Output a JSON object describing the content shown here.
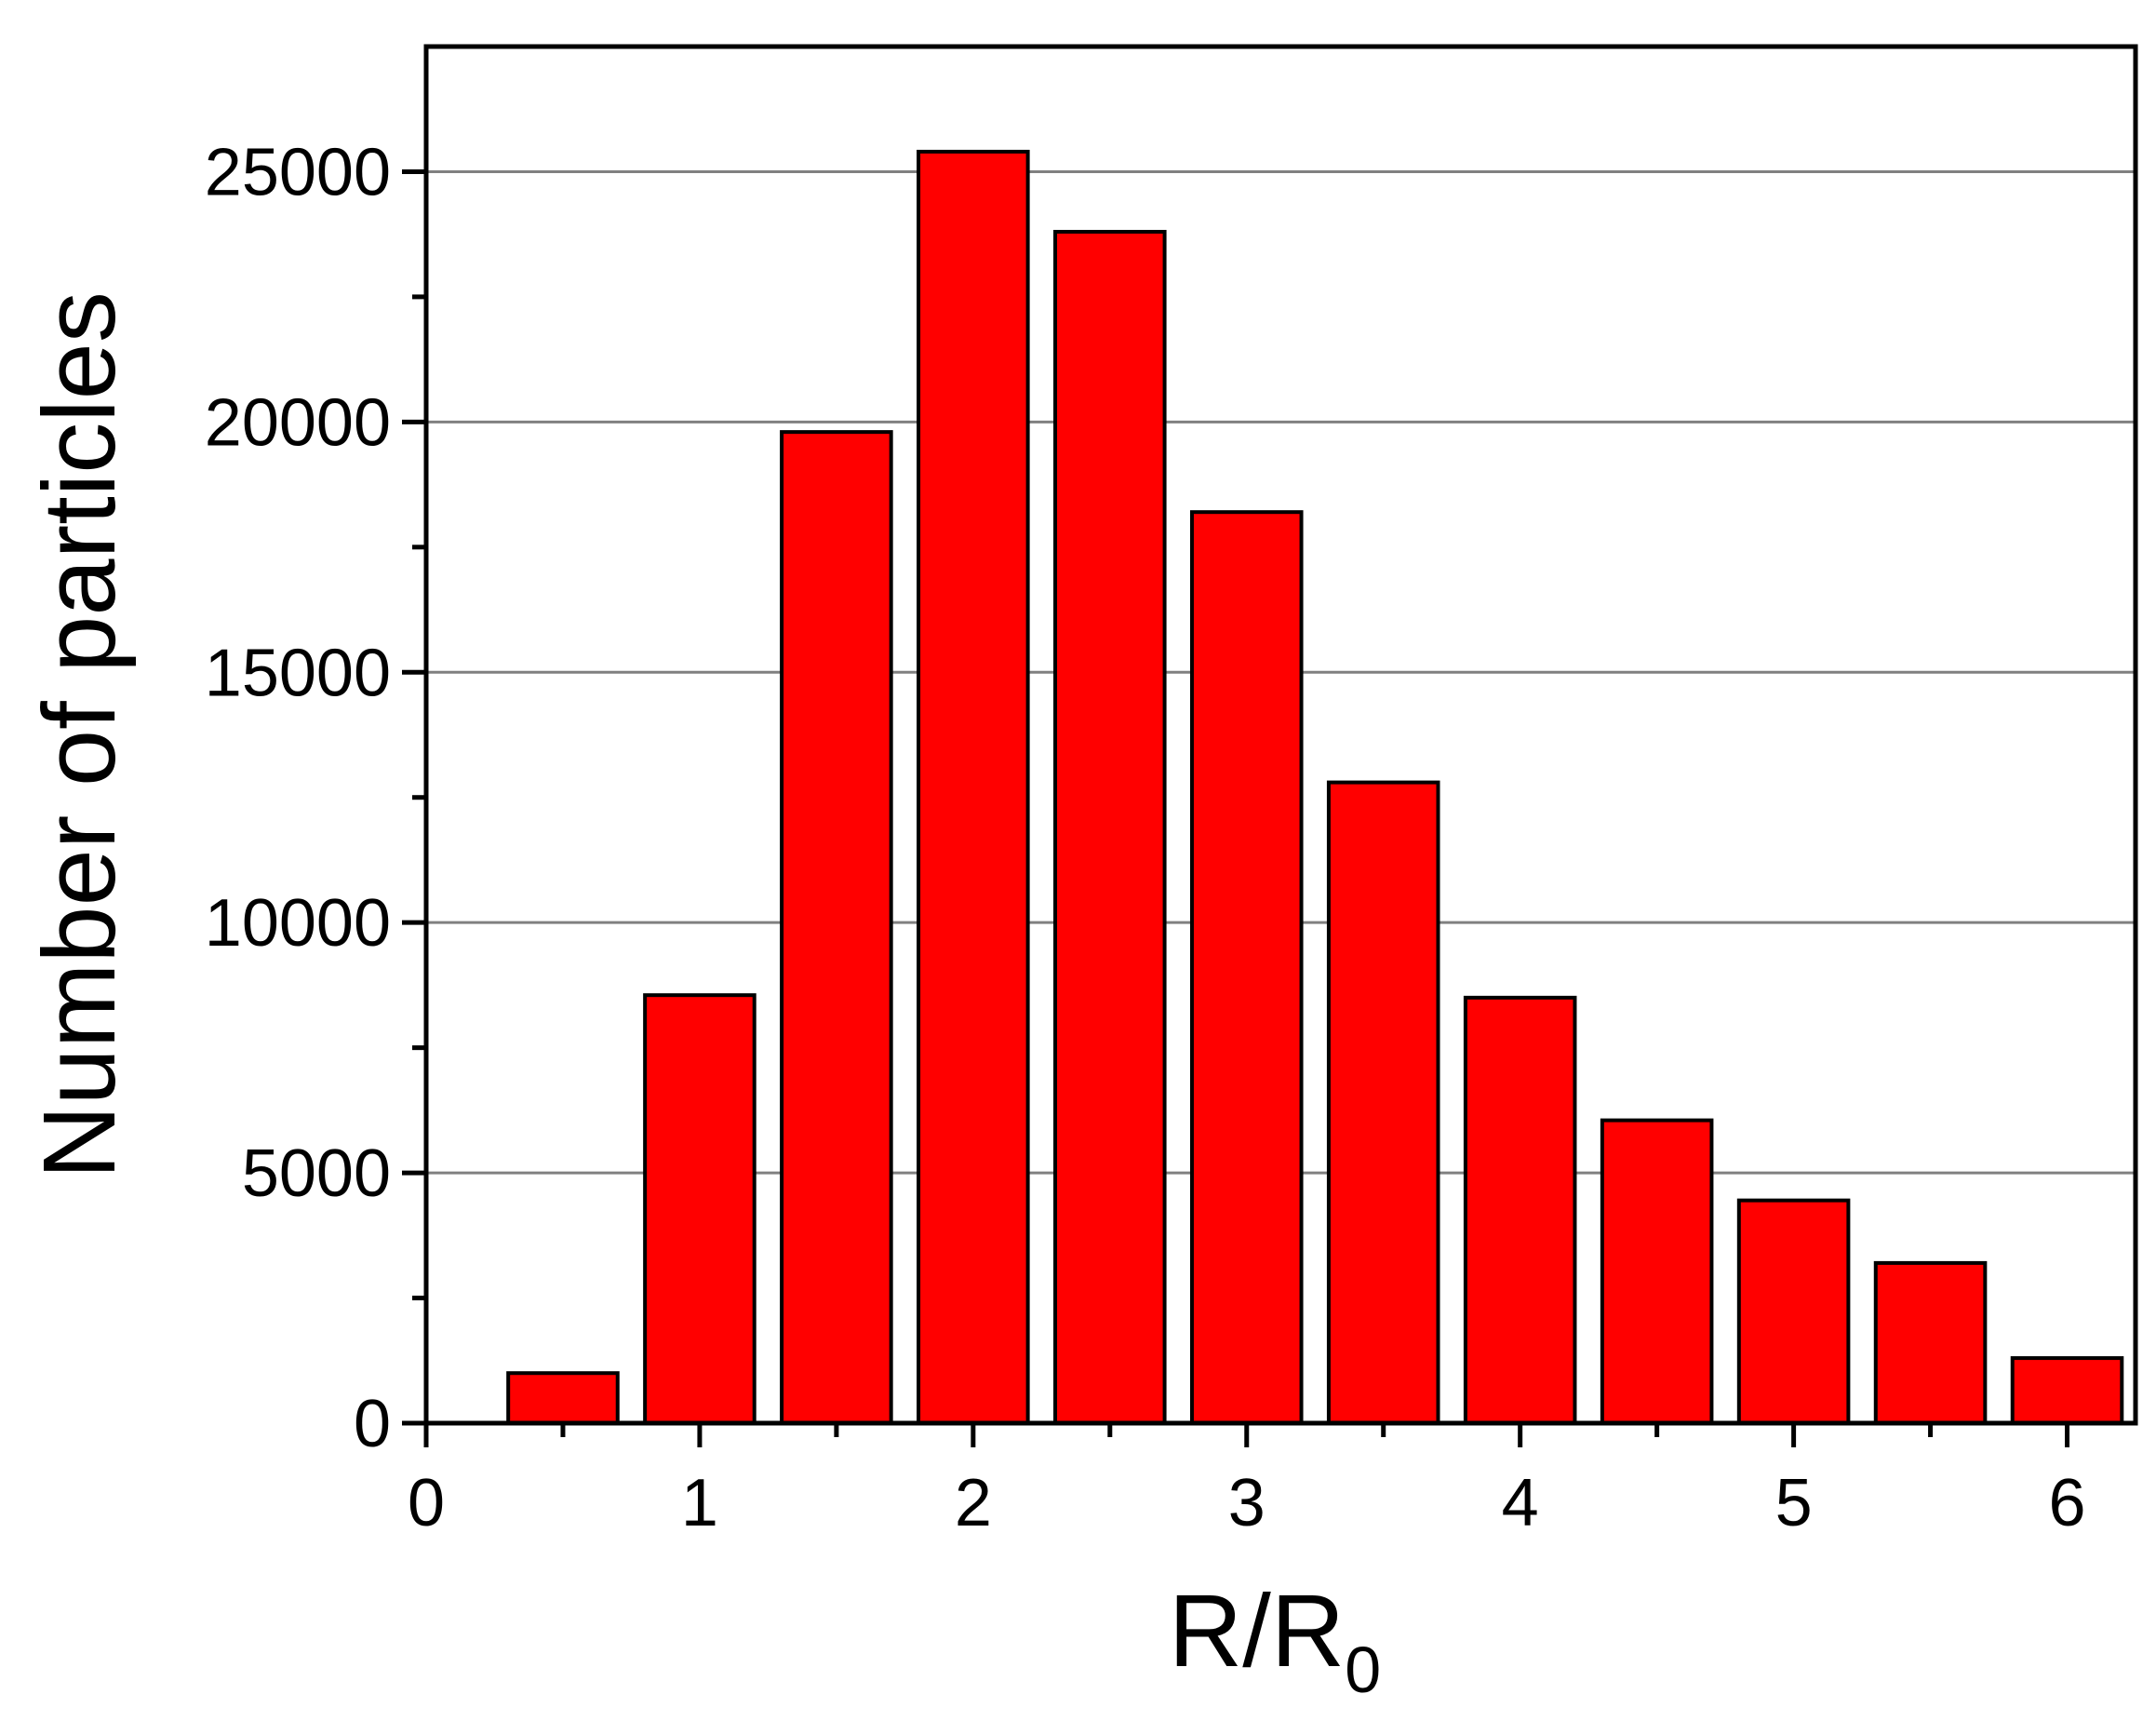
{
  "chart_data": {
    "type": "bar",
    "title": "",
    "xlabel": "R/R",
    "xlabel_subscript": "0",
    "ylabel": "Number of particles",
    "x": [
      0.5,
      1.0,
      1.5,
      2.0,
      2.5,
      3.0,
      3.5,
      4.0,
      4.5,
      5.0,
      5.5,
      6.0
    ],
    "values": [
      1000,
      8550,
      19800,
      25400,
      23800,
      18200,
      12800,
      8500,
      6050,
      4450,
      3200,
      1300
    ],
    "bar_width": 0.4,
    "xlim": [
      0,
      6.25
    ],
    "ylim": [
      0,
      27500
    ],
    "x_ticks": [
      0,
      1,
      2,
      3,
      4,
      5,
      6
    ],
    "x_minor_ticks": [
      0.5,
      1.5,
      2.5,
      3.5,
      4.5,
      5.5
    ],
    "y_ticks": [
      0,
      5000,
      10000,
      15000,
      20000,
      25000
    ],
    "y_minor_ticks": [
      2500,
      7500,
      12500,
      17500,
      22500
    ],
    "x_tick_labels": [
      "0",
      "1",
      "2",
      "3",
      "4",
      "5",
      "6"
    ],
    "y_tick_labels": [
      "0",
      "5000",
      "10000",
      "15000",
      "20000",
      "25000"
    ],
    "grid": "horizontal major",
    "legend": "none",
    "colors": {
      "bar_fill": "#ff0000",
      "bar_stroke": "#000000",
      "grid": "#808080",
      "axis": "#000000"
    }
  }
}
